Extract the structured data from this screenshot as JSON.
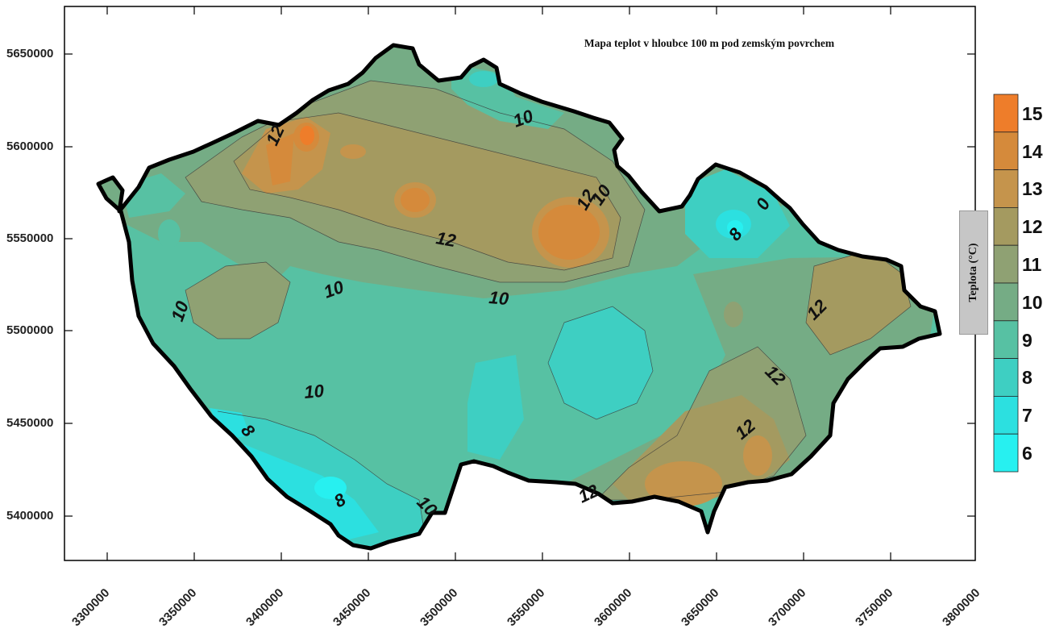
{
  "title": "Mapa teplot v hloubce 100 m pod zemským povrchem",
  "legend": {
    "title": "Teplota (°C)",
    "levels": [
      "15",
      "14",
      "13",
      "12",
      "11",
      "10",
      "9",
      "8",
      "7",
      "6"
    ],
    "colors": [
      "#ee7d2a",
      "#d58a3b",
      "#c5944c",
      "#a49a60",
      "#8fa173",
      "#75ac85",
      "#57c1a3",
      "#3ecfc2",
      "#2ce0e0",
      "#27f0f0"
    ]
  },
  "axes": {
    "y_ticks": [
      "5650000",
      "5600000",
      "5550000",
      "5500000",
      "5450000",
      "5400000"
    ],
    "x_ticks": [
      "3300000",
      "3350000",
      "3400000",
      "3450000",
      "3500000",
      "3550000",
      "3600000",
      "3650000",
      "3700000",
      "3750000",
      "3800000"
    ]
  },
  "contour_labels": {
    "l1": "10",
    "l2": "10",
    "l3": "12",
    "l4": "12",
    "l5": "10",
    "l6": "12",
    "l7": "10",
    "l8": "10",
    "l9": "10",
    "l10": "8",
    "l11": "8",
    "l12": "10",
    "l13": "12",
    "l14": "12",
    "l15": "12",
    "l16": "12",
    "l17": "0",
    "l18": "8"
  }
}
